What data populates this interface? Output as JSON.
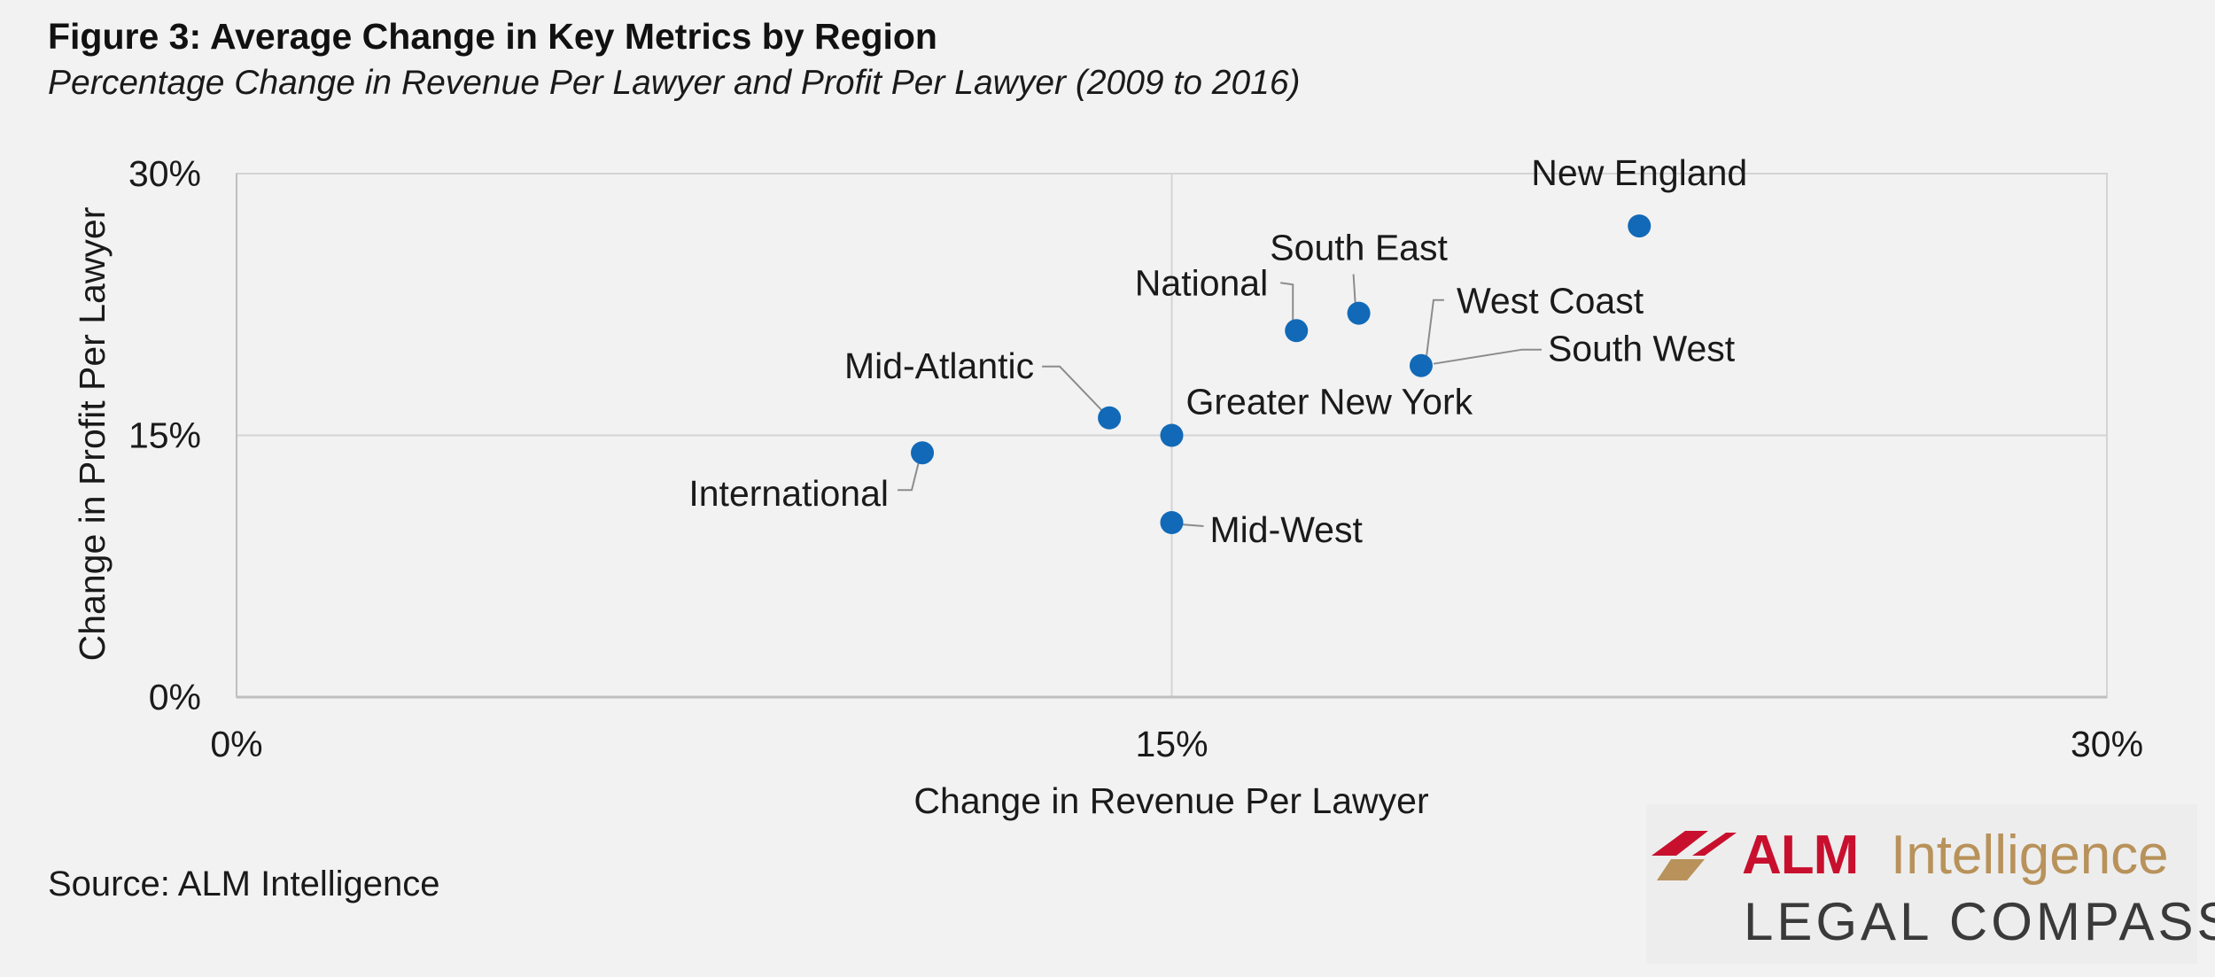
{
  "title": "Figure 3: Average Change in Key Metrics by Region",
  "subtitle": "Percentage Change in Revenue Per Lawyer and Profit Per Lawyer (2009 to 2016)",
  "source": "Source: ALM Intelligence",
  "logo": {
    "brand": "ALM",
    "product": "Intelligence",
    "tagline": "LEGAL COMPASS",
    "brand_color": "#c8102e",
    "product_color": "#b8925a",
    "tagline_color": "#3a3a3a"
  },
  "colors": {
    "point": "#1169b8",
    "grid": "#d4d4d4",
    "axis": "#bfbfbf",
    "leader": "#8c8c8c",
    "background": "#f2f2f2"
  },
  "chart_data": {
    "type": "scatter",
    "xlabel": "Change in Revenue Per Lawyer",
    "ylabel": "Change in Profit Per Lawyer",
    "xlim": [
      0,
      30
    ],
    "ylim": [
      0,
      30
    ],
    "x_ticks": [
      "0%",
      "15%",
      "30%"
    ],
    "y_ticks": [
      "0%",
      "15%",
      "30%"
    ],
    "grid": true,
    "legend": "none",
    "points": [
      {
        "name": "New England",
        "x": 22.5,
        "y": 27.0
      },
      {
        "name": "South East",
        "x": 18.0,
        "y": 22.0
      },
      {
        "name": "National",
        "x": 17.0,
        "y": 21.0
      },
      {
        "name": "West Coast",
        "x": 19.0,
        "y": 19.0
      },
      {
        "name": "South West",
        "x": 19.0,
        "y": 19.0
      },
      {
        "name": "Mid-Atlantic",
        "x": 14.0,
        "y": 16.0
      },
      {
        "name": "Greater New York",
        "x": 15.0,
        "y": 15.0
      },
      {
        "name": "International",
        "x": 11.0,
        "y": 14.0
      },
      {
        "name": "Mid-West",
        "x": 15.0,
        "y": 10.0
      }
    ]
  }
}
